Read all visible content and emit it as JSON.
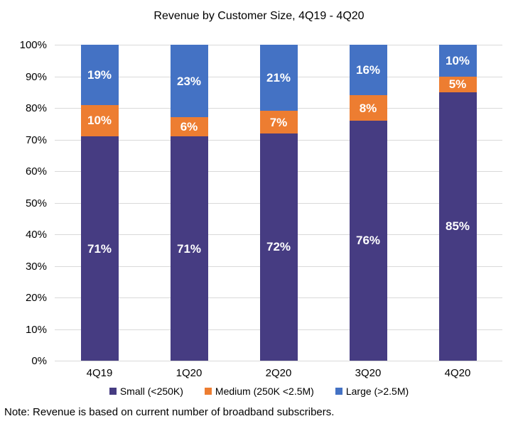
{
  "title": "Revenue by Customer Size, 4Q19 - 4Q20",
  "note": "Note: Revenue is based on current number of broadband subscribers.",
  "colors": {
    "small": "#463c82",
    "medium": "#ed7d31",
    "large": "#4472c4",
    "gridline": "#d9d9d9",
    "data_label": "#ffffff",
    "text": "#000000",
    "background": "#ffffff"
  },
  "chart_data": {
    "type": "bar",
    "stacked": true,
    "title": "Revenue by Customer Size, 4Q19 - 4Q20",
    "categories": [
      "4Q19",
      "1Q20",
      "2Q20",
      "3Q20",
      "4Q20"
    ],
    "series": [
      {
        "key": "small",
        "name": "Small (<250K)",
        "color": "#463c82",
        "values": [
          71,
          71,
          72,
          76,
          85
        ],
        "labels": [
          "71%",
          "71%",
          "72%",
          "76%",
          "85%"
        ]
      },
      {
        "key": "medium",
        "name": "Medium (250K <2.5M)",
        "color": "#ed7d31",
        "values": [
          10,
          6,
          7,
          8,
          5
        ],
        "labels": [
          "10%",
          "6%",
          "7%",
          "8%",
          "5%"
        ]
      },
      {
        "key": "large",
        "name": "Large (>2.5M)",
        "color": "#4472c4",
        "values": [
          19,
          23,
          21,
          16,
          10
        ],
        "labels": [
          "19%",
          "23%",
          "21%",
          "16%",
          "10%"
        ]
      }
    ],
    "xlabel": "",
    "ylabel": "",
    "ylim": [
      0,
      100
    ],
    "ytick_labels": [
      "0%",
      "10%",
      "20%",
      "30%",
      "40%",
      "50%",
      "60%",
      "70%",
      "80%",
      "90%",
      "100%"
    ],
    "grid": true,
    "legend_position": "bottom",
    "data_labels": "inside-center-percent"
  }
}
